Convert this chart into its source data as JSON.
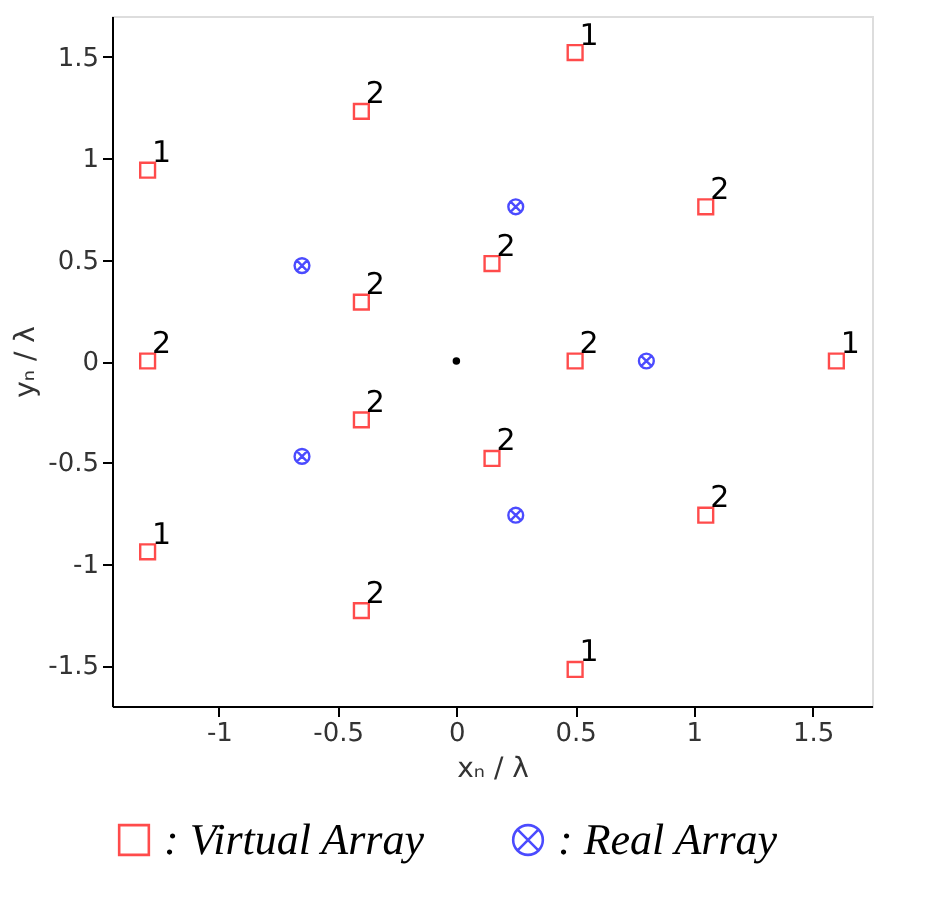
{
  "chart_data": {
    "type": "scatter",
    "xlabel": "xₙ / λ",
    "ylabel": "yₙ / λ",
    "xlim": [
      -1.45,
      1.75
    ],
    "xticks": [
      -1,
      -0.5,
      0,
      0.5,
      1,
      1.5
    ],
    "ylim": [
      -1.7,
      1.7
    ],
    "yticks": [
      -1.5,
      -1,
      -0.5,
      0,
      0.5,
      1,
      1.5
    ],
    "grid": false,
    "legend": "bottom",
    "series": [
      {
        "name": ": Virtual Array",
        "color": "#ff0000",
        "marker": "square",
        "x": [
          0.5,
          -0.4,
          -1.3,
          1.05,
          0.15,
          -0.4,
          -1.3,
          0.5,
          1.6,
          -0.4,
          0.15,
          -1.3,
          1.05,
          -0.4,
          0.5
        ],
        "values": [
          1.52,
          1.23,
          0.94,
          0.76,
          0.48,
          0.29,
          0,
          0,
          0,
          -0.29,
          -0.48,
          -0.94,
          -0.76,
          -1.23,
          -1.52
        ]
      },
      {
        "name": ": Real Array",
        "color": "#0000ff",
        "marker": "cross",
        "x": [
          0.25,
          -0.65,
          0.8,
          -0.65,
          0.25
        ],
        "values": [
          0.76,
          0.47,
          0,
          -0.47,
          -0.76
        ]
      },
      {
        "color": "#000000",
        "marker": "circle",
        "x": [
          0
        ],
        "values": [
          0
        ]
      }
    ],
    "annotations": [
      {
        "text": "1",
        "x": 0.5,
        "y": 1.52
      },
      {
        "text": "2",
        "x": -0.4,
        "y": 1.23
      },
      {
        "text": "1",
        "x": -1.3,
        "y": 0.94
      },
      {
        "text": "2",
        "x": 1.05,
        "y": 0.76
      },
      {
        "text": "2",
        "x": 0.15,
        "y": 0.48
      },
      {
        "text": "2",
        "x": -0.4,
        "y": 0.29
      },
      {
        "text": "2",
        "x": -1.3,
        "y": 0
      },
      {
        "text": "2",
        "x": 0.5,
        "y": 0
      },
      {
        "text": "1",
        "x": 1.6,
        "y": 0
      },
      {
        "text": "2",
        "x": -0.4,
        "y": -0.29
      },
      {
        "text": "2",
        "x": 0.15,
        "y": -0.48
      },
      {
        "text": "1",
        "x": -1.3,
        "y": -0.94
      },
      {
        "text": "2",
        "x": 1.05,
        "y": -0.76
      },
      {
        "text": "2",
        "x": -0.4,
        "y": -1.23
      },
      {
        "text": "1",
        "x": 0.5,
        "y": -1.52
      }
    ]
  }
}
